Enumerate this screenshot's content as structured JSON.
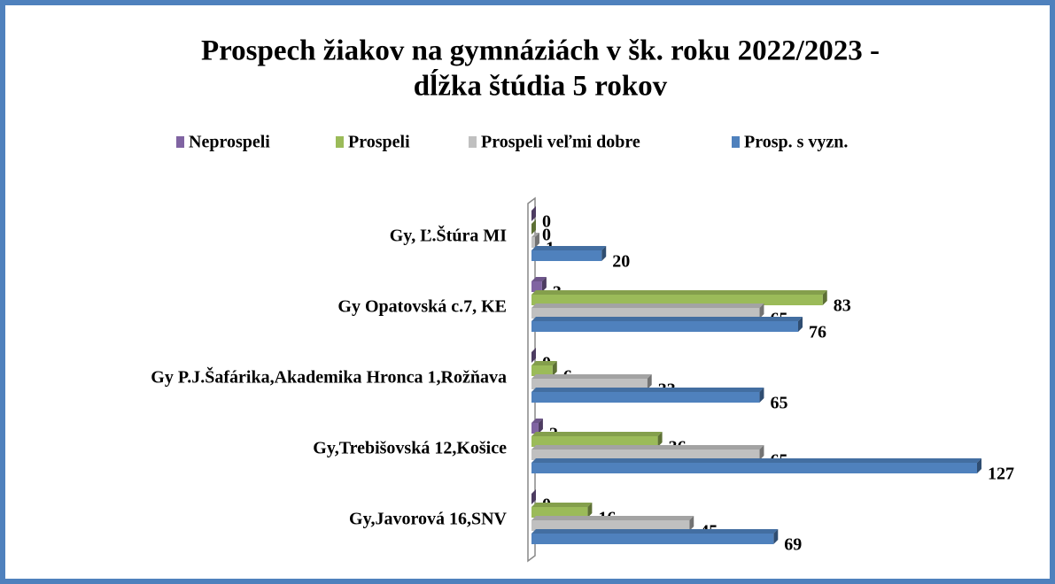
{
  "chart_data": {
    "type": "bar",
    "orientation": "horizontal",
    "title": [
      "Prospech žiakov na gymnáziách v šk. roku 2022/2023 -",
      "dĺžka štúdia 5 rokov"
    ],
    "categories": [
      "Gy, Ľ.Štúra MI",
      "Gy Opatovská c.7, KE",
      "Gy P.J.Šafárika,Akademika Hronca 1,Rožňava",
      "Gy,Trebišovská 12,Košice",
      "Gy,Javorová 16,SNV"
    ],
    "series": [
      {
        "name": "Neprospeli",
        "color": "#8064a2",
        "values": [
          0,
          3,
          0,
          2,
          0
        ]
      },
      {
        "name": "Prospeli",
        "color": "#9bbb59",
        "values": [
          0,
          83,
          6,
          36,
          16
        ]
      },
      {
        "name": "Prospeli veľmi dobre",
        "color": "#c0c0c0",
        "values": [
          1,
          65,
          33,
          65,
          45
        ]
      },
      {
        "name": "Prosp. s vyzn.",
        "color": "#4f81bd",
        "values": [
          20,
          76,
          65,
          127,
          69
        ]
      }
    ],
    "legend": "top"
  }
}
